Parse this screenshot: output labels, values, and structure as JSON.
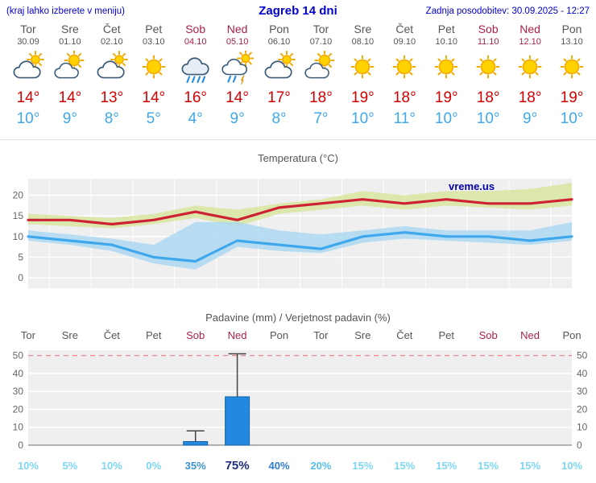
{
  "header": {
    "left_note": "(kraj lahko izberete v meniju)",
    "title": "Zagreb 14 dni",
    "updated": "Zadnja posodobitev: 30.09.2025 - 12:27"
  },
  "colors": {
    "header_text": "#0000cc",
    "weekday_text": "#555555",
    "weekend_text": "#aa2244",
    "tmax_text": "#d40000",
    "tmin_text": "#3fa8ec"
  },
  "days": [
    {
      "name": "Tor",
      "date": "30.09",
      "weekend": false,
      "icon": "mostly-cloudy",
      "tmax": "14°",
      "tmin": "10°",
      "prob": "10%",
      "prob_color": "#7dd7f2",
      "prob_strong": false
    },
    {
      "name": "Sre",
      "date": "01.10",
      "weekend": false,
      "icon": "partly-sunny",
      "tmax": "14°",
      "tmin": "9°",
      "prob": "5%",
      "prob_color": "#7dd7f2",
      "prob_strong": false
    },
    {
      "name": "Čet",
      "date": "02.10",
      "weekend": false,
      "icon": "mostly-cloudy",
      "tmax": "13°",
      "tmin": "8°",
      "prob": "10%",
      "prob_color": "#7dd7f2",
      "prob_strong": false
    },
    {
      "name": "Pet",
      "date": "03.10",
      "weekend": false,
      "icon": "sunny",
      "tmax": "14°",
      "tmin": "5°",
      "prob": "0%",
      "prob_color": "#7dd7f2",
      "prob_strong": false
    },
    {
      "name": "Sob",
      "date": "04.10",
      "weekend": true,
      "icon": "rain",
      "tmax": "16°",
      "tmin": "4°",
      "prob": "35%",
      "prob_color": "#3d92cf",
      "prob_strong": false
    },
    {
      "name": "Ned",
      "date": "05.10",
      "weekend": true,
      "icon": "rain-sun",
      "tmax": "14°",
      "tmin": "9°",
      "prob": "75%",
      "prob_color": "#1c2e7e",
      "prob_strong": true
    },
    {
      "name": "Pon",
      "date": "06.10",
      "weekend": false,
      "icon": "mostly-cloudy",
      "tmax": "17°",
      "tmin": "8°",
      "prob": "40%",
      "prob_color": "#2f7fd1",
      "prob_strong": false
    },
    {
      "name": "Tor",
      "date": "07.10",
      "weekend": false,
      "icon": "partly-sunny",
      "tmax": "18°",
      "tmin": "7°",
      "prob": "20%",
      "prob_color": "#55bdea",
      "prob_strong": false
    },
    {
      "name": "Sre",
      "date": "08.10",
      "weekend": false,
      "icon": "sunny",
      "tmax": "19°",
      "tmin": "10°",
      "prob": "15%",
      "prob_color": "#7dd7f2",
      "prob_strong": false
    },
    {
      "name": "Čet",
      "date": "09.10",
      "weekend": false,
      "icon": "sunny",
      "tmax": "18°",
      "tmin": "11°",
      "prob": "15%",
      "prob_color": "#7dd7f2",
      "prob_strong": false
    },
    {
      "name": "Pet",
      "date": "10.10",
      "weekend": false,
      "icon": "sunny",
      "tmax": "19°",
      "tmin": "10°",
      "prob": "15%",
      "prob_color": "#7dd7f2",
      "prob_strong": false
    },
    {
      "name": "Sob",
      "date": "11.10",
      "weekend": true,
      "icon": "sunny",
      "tmax": "18°",
      "tmin": "10°",
      "prob": "15%",
      "prob_color": "#7dd7f2",
      "prob_strong": false
    },
    {
      "name": "Ned",
      "date": "12.10",
      "weekend": true,
      "icon": "sunny",
      "tmax": "18°",
      "tmin": "9°",
      "prob": "15%",
      "prob_color": "#7dd7f2",
      "prob_strong": false
    },
    {
      "name": "Pon",
      "date": "13.10",
      "weekend": false,
      "icon": "sunny",
      "tmax": "19°",
      "tmin": "10°",
      "prob": "10%",
      "prob_color": "#7dd7f2",
      "prob_strong": false
    }
  ],
  "chart_data": [
    {
      "type": "line",
      "title": "Temperatura (°C)",
      "watermark": "vreme.us",
      "x_labels": [
        "Tor",
        "Sre",
        "Čet",
        "Pet",
        "Sob",
        "Ned",
        "Pon",
        "Tor",
        "Sre",
        "Čet",
        "Pet",
        "Sob",
        "Ned",
        "Pon"
      ],
      "ylim": [
        -2.5,
        24
      ],
      "yticks": [
        0,
        5,
        10,
        15,
        20
      ],
      "grid": true,
      "legend": "none",
      "series": [
        {
          "name": "max-band-upper",
          "values": [
            15.5,
            15,
            14.5,
            15.5,
            17.5,
            16.5,
            18,
            19,
            21,
            20,
            21,
            21,
            21.5,
            23
          ]
        },
        {
          "name": "max-band-lower",
          "values": [
            13,
            12.5,
            12,
            13,
            14.5,
            12.5,
            15.5,
            16.5,
            17.5,
            16.5,
            17.5,
            17,
            16.5,
            17.5
          ]
        },
        {
          "name": "min-band-upper",
          "values": [
            11.5,
            10.5,
            9.5,
            8,
            13.5,
            13.5,
            11.5,
            10.5,
            11.5,
            12.5,
            11.5,
            11.5,
            11.5,
            13.5
          ]
        },
        {
          "name": "min-band-lower",
          "values": [
            9,
            8,
            6.5,
            3.5,
            2,
            7.5,
            6.5,
            6,
            8.5,
            9.5,
            9,
            8.5,
            8,
            9
          ]
        },
        {
          "name": "tmax",
          "values": [
            14,
            14,
            13,
            14,
            16,
            14,
            17,
            18,
            19,
            18,
            19,
            18,
            18,
            19
          ]
        },
        {
          "name": "tmin",
          "values": [
            10,
            9,
            8,
            5,
            4,
            9,
            8,
            7,
            10,
            11,
            10,
            10,
            9,
            10
          ]
        }
      ],
      "colors": {
        "tmax": "#cc2233",
        "tmin": "#3fa8ec",
        "max_band": "#d9e6a4",
        "min_band": "#a9d7f2",
        "bg": "#efefef",
        "grid": "#ffffff"
      }
    },
    {
      "type": "bar",
      "title": "Padavine (mm) / Verjetnost padavin (%)",
      "categories": [
        "Tor",
        "Sre",
        "Čet",
        "Pet",
        "Sob",
        "Ned",
        "Pon",
        "Tor",
        "Sre",
        "Čet",
        "Pet",
        "Sob",
        "Ned",
        "Pon"
      ],
      "values": [
        0,
        0,
        0,
        0,
        2,
        27,
        0,
        0,
        0,
        0,
        0,
        0,
        0,
        0
      ],
      "whisker_max": [
        0,
        0,
        0,
        0,
        8,
        51,
        0,
        0,
        0,
        0,
        0,
        0,
        0,
        0
      ],
      "probabilities": [
        "10%",
        "5%",
        "10%",
        "0%",
        "35%",
        "75%",
        "40%",
        "20%",
        "15%",
        "15%",
        "15%",
        "15%",
        "15%",
        "10%"
      ],
      "ylim": [
        0,
        53
      ],
      "yticks": [
        0,
        10,
        20,
        30,
        40,
        50
      ],
      "colors": {
        "bar": "#2288e0",
        "bar_border": "#1166aa",
        "bg": "#efefef",
        "grid": "#ffffff",
        "top_grid": "#ee7788",
        "axis": "#888888"
      }
    }
  ]
}
